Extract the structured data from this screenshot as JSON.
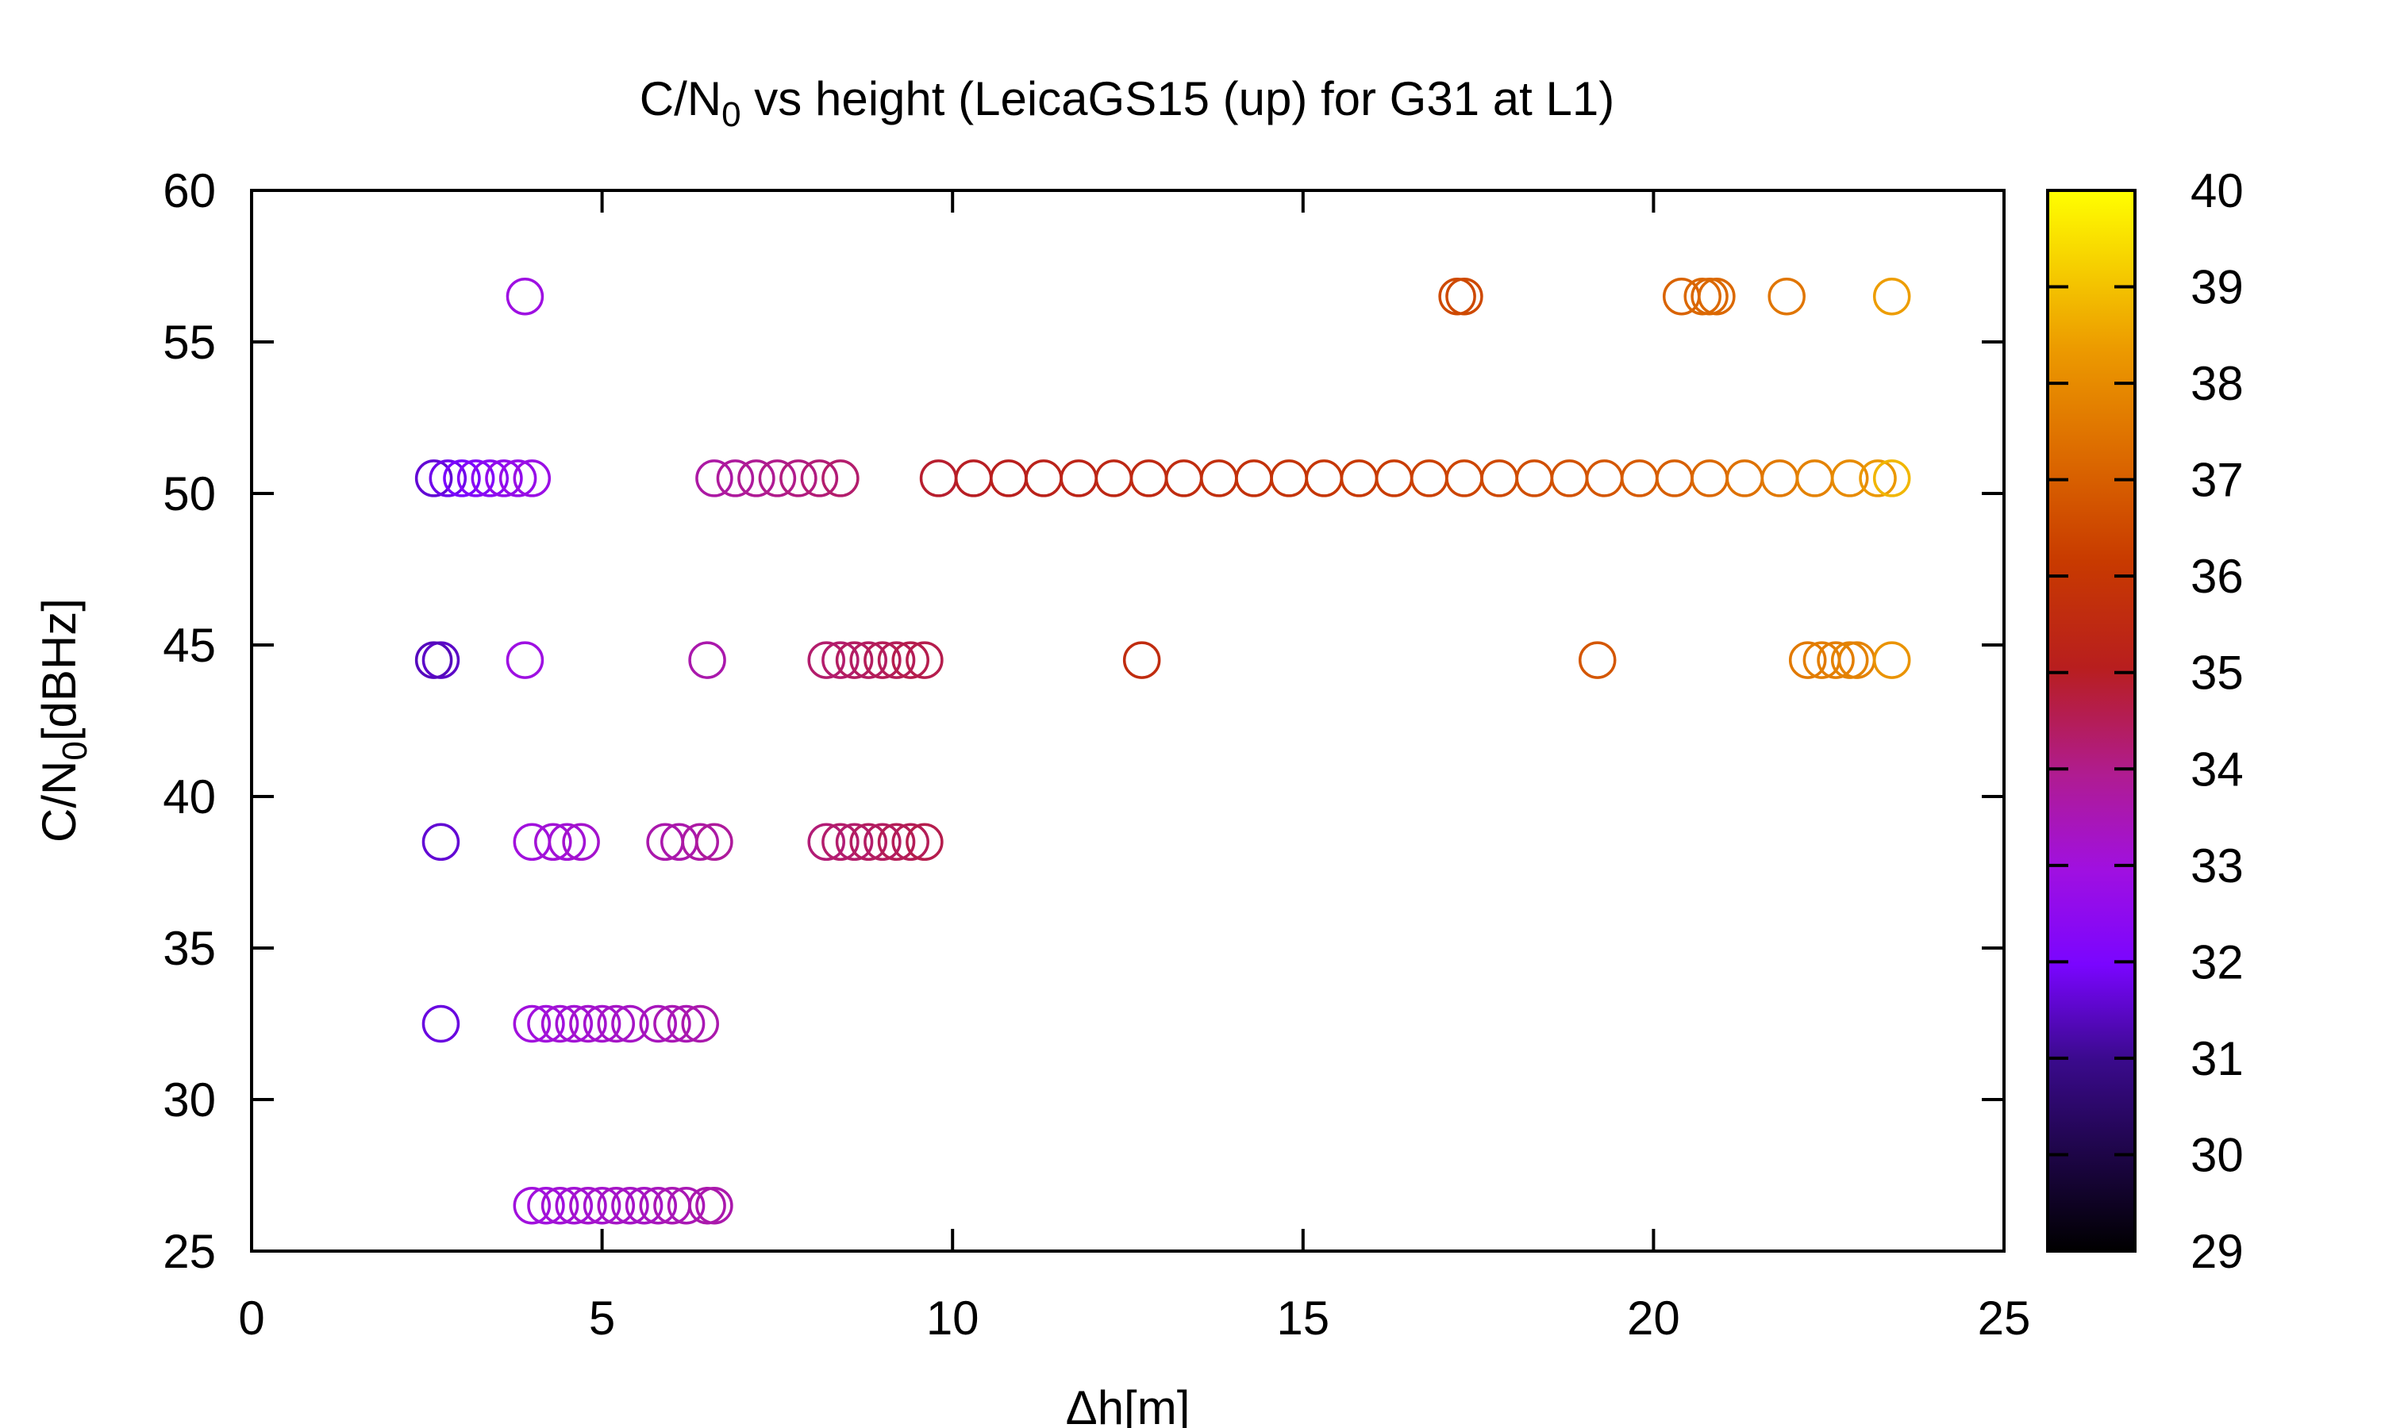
{
  "chart_data": {
    "type": "scatter",
    "title": {
      "main": "C/N",
      "sub": "0",
      "rest": " vs height (LeicaGS15 (up) for G31 at L1)"
    },
    "xlabel": "Δh[m]",
    "ylabel": {
      "main": "C/N",
      "sub": "0",
      "rest": "[dBHz]"
    },
    "xlim": [
      0,
      25
    ],
    "ylim": [
      25,
      60
    ],
    "xticks": [
      "0",
      "5",
      "10",
      "15",
      "20",
      "25"
    ],
    "yticks": [
      "25",
      "30",
      "35",
      "40",
      "45",
      "50",
      "55",
      "60"
    ],
    "colorbar": {
      "range": [
        29,
        40
      ],
      "ticks": [
        "29",
        "30",
        "31",
        "32",
        "33",
        "34",
        "35",
        "36",
        "37",
        "38",
        "39",
        "40"
      ],
      "palette": "black-blue-purple-red-orange-yellow"
    },
    "marker": "open-circle",
    "grid": false,
    "legend": "none",
    "series": [
      {
        "points": [
          [
            2.6,
            50.5,
            31.6
          ],
          [
            2.8,
            50.5,
            31.8
          ],
          [
            3.0,
            50.5,
            32.0
          ],
          [
            3.2,
            50.5,
            32.2
          ],
          [
            3.4,
            50.5,
            32.4
          ],
          [
            3.6,
            50.5,
            32.6
          ],
          [
            3.8,
            50.5,
            32.7
          ],
          [
            4.0,
            50.5,
            32.8
          ],
          [
            6.6,
            50.5,
            33.7
          ],
          [
            6.9,
            50.5,
            33.8
          ],
          [
            7.2,
            50.5,
            33.9
          ],
          [
            7.5,
            50.5,
            34.0
          ],
          [
            7.8,
            50.5,
            34.1
          ],
          [
            8.1,
            50.5,
            34.2
          ],
          [
            8.4,
            50.5,
            34.3
          ],
          [
            9.8,
            50.5,
            34.9
          ],
          [
            10.3,
            50.5,
            35.0
          ],
          [
            10.8,
            50.5,
            35.1
          ],
          [
            11.3,
            50.5,
            35.2
          ],
          [
            11.8,
            50.5,
            35.3
          ],
          [
            12.3,
            50.5,
            35.4
          ],
          [
            12.8,
            50.5,
            35.5
          ],
          [
            13.3,
            50.5,
            35.6
          ],
          [
            13.8,
            50.5,
            35.7
          ],
          [
            14.3,
            50.5,
            35.8
          ],
          [
            14.8,
            50.5,
            35.9
          ],
          [
            15.3,
            50.5,
            36.0
          ],
          [
            15.8,
            50.5,
            36.1
          ],
          [
            16.3,
            50.5,
            36.2
          ],
          [
            16.8,
            50.5,
            36.3
          ],
          [
            17.3,
            50.5,
            36.4
          ],
          [
            17.8,
            50.5,
            36.5
          ],
          [
            18.3,
            50.5,
            36.6
          ],
          [
            18.8,
            50.5,
            36.7
          ],
          [
            19.3,
            50.5,
            36.8
          ],
          [
            19.8,
            50.5,
            36.9
          ],
          [
            20.3,
            50.5,
            37.0
          ],
          [
            20.8,
            50.5,
            37.2
          ],
          [
            21.3,
            50.5,
            37.4
          ],
          [
            21.8,
            50.5,
            37.6
          ],
          [
            22.3,
            50.5,
            37.8
          ],
          [
            22.8,
            50.5,
            38.0
          ],
          [
            23.2,
            50.5,
            38.3
          ],
          [
            23.4,
            50.5,
            38.8
          ],
          [
            3.9,
            56.5,
            32.9
          ],
          [
            17.2,
            56.5,
            36.5
          ],
          [
            17.3,
            56.5,
            36.5
          ],
          [
            20.4,
            56.5,
            37.1
          ],
          [
            20.7,
            56.5,
            37.2
          ],
          [
            20.8,
            56.5,
            37.2
          ],
          [
            20.9,
            56.5,
            37.2
          ],
          [
            21.9,
            56.5,
            37.5
          ],
          [
            23.4,
            56.5,
            38.4
          ],
          [
            2.7,
            44.5,
            31.5
          ],
          [
            2.6,
            44.5,
            31.4
          ],
          [
            3.9,
            44.5,
            32.9
          ],
          [
            6.5,
            44.5,
            33.6
          ],
          [
            8.2,
            44.5,
            34.3
          ],
          [
            8.4,
            44.5,
            34.3
          ],
          [
            8.6,
            44.5,
            34.4
          ],
          [
            8.8,
            44.5,
            34.4
          ],
          [
            9.0,
            44.5,
            34.5
          ],
          [
            9.2,
            44.5,
            34.5
          ],
          [
            9.4,
            44.5,
            34.6
          ],
          [
            9.6,
            44.5,
            34.6
          ],
          [
            12.7,
            44.5,
            35.6
          ],
          [
            19.2,
            44.5,
            36.8
          ],
          [
            22.2,
            44.5,
            37.6
          ],
          [
            22.4,
            44.5,
            37.7
          ],
          [
            22.6,
            44.5,
            37.7
          ],
          [
            22.8,
            44.5,
            37.8
          ],
          [
            22.9,
            44.5,
            37.8
          ],
          [
            23.4,
            44.5,
            38.2
          ],
          [
            2.7,
            38.5,
            31.6
          ],
          [
            4.0,
            38.5,
            33.0
          ],
          [
            4.3,
            38.5,
            33.1
          ],
          [
            4.5,
            38.5,
            33.1
          ],
          [
            4.7,
            38.5,
            33.2
          ],
          [
            5.9,
            38.5,
            33.6
          ],
          [
            6.1,
            38.5,
            33.6
          ],
          [
            6.4,
            38.5,
            33.7
          ],
          [
            6.6,
            38.5,
            33.8
          ],
          [
            8.2,
            38.5,
            34.2
          ],
          [
            8.4,
            38.5,
            34.3
          ],
          [
            8.6,
            38.5,
            34.3
          ],
          [
            8.8,
            38.5,
            34.4
          ],
          [
            9.0,
            38.5,
            34.4
          ],
          [
            9.2,
            38.5,
            34.5
          ],
          [
            9.4,
            38.5,
            34.5
          ],
          [
            9.6,
            38.5,
            34.6
          ],
          [
            2.7,
            32.5,
            31.7
          ],
          [
            4.0,
            32.5,
            33.0
          ],
          [
            4.2,
            32.5,
            33.0
          ],
          [
            4.4,
            32.5,
            33.1
          ],
          [
            4.6,
            32.5,
            33.1
          ],
          [
            4.8,
            32.5,
            33.2
          ],
          [
            5.0,
            32.5,
            33.2
          ],
          [
            5.2,
            32.5,
            33.3
          ],
          [
            5.4,
            32.5,
            33.3
          ],
          [
            5.8,
            32.5,
            33.4
          ],
          [
            6.0,
            32.5,
            33.5
          ],
          [
            6.2,
            32.5,
            33.5
          ],
          [
            6.4,
            32.5,
            33.6
          ],
          [
            4.0,
            26.5,
            33.0
          ],
          [
            4.2,
            26.5,
            33.0
          ],
          [
            4.4,
            26.5,
            33.1
          ],
          [
            4.6,
            26.5,
            33.1
          ],
          [
            4.8,
            26.5,
            33.2
          ],
          [
            5.0,
            26.5,
            33.2
          ],
          [
            5.2,
            26.5,
            33.3
          ],
          [
            5.4,
            26.5,
            33.3
          ],
          [
            5.6,
            26.5,
            33.3
          ],
          [
            5.8,
            26.5,
            33.4
          ],
          [
            6.0,
            26.5,
            33.5
          ],
          [
            6.2,
            26.5,
            33.5
          ],
          [
            6.5,
            26.5,
            33.6
          ],
          [
            6.6,
            26.5,
            33.6
          ]
        ]
      }
    ]
  }
}
